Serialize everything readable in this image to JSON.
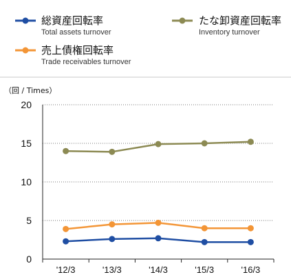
{
  "chart_data": {
    "type": "line",
    "title": "",
    "unit_label": "（回 / Times）",
    "categories": [
      "'12/3",
      "'13/3",
      "'14/3",
      "'15/3",
      "'16/3"
    ],
    "ylim": [
      0,
      20
    ],
    "yticks": [
      0,
      5,
      10,
      15,
      20
    ],
    "grid": true,
    "legend_position": "top",
    "series": [
      {
        "name": "総資産回転率",
        "name_en": "Total assets turnover",
        "color": "#1f4ea3",
        "values": [
          2.3,
          2.6,
          2.7,
          2.2,
          2.2
        ]
      },
      {
        "name": "たな卸資産回転率",
        "name_en": "Inventory turnover",
        "color": "#8c8a53",
        "values": [
          14.0,
          13.9,
          14.9,
          15.0,
          15.2
        ]
      },
      {
        "name": "売上債権回転率",
        "name_en": "Trade receivables turnover",
        "color": "#f39536",
        "values": [
          3.9,
          4.5,
          4.7,
          4.0,
          4.0
        ]
      }
    ]
  }
}
